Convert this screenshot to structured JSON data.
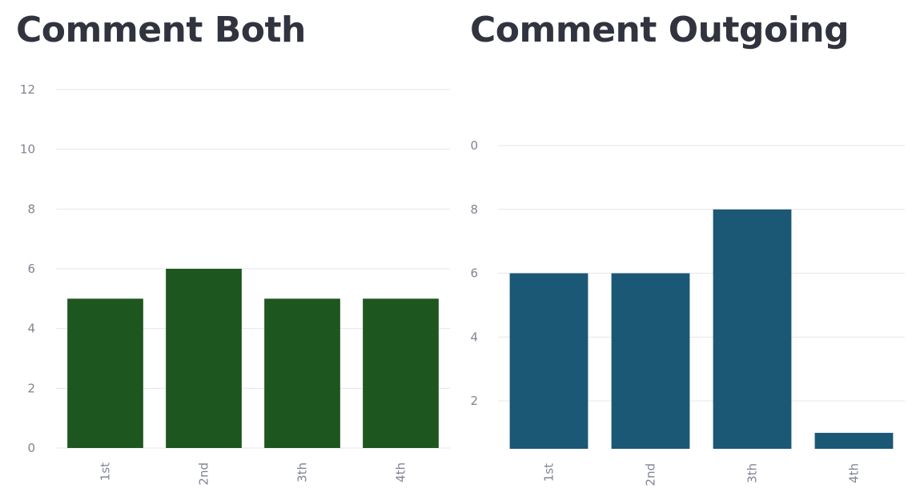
{
  "chart_data": [
    {
      "type": "bar",
      "title": "Comment Both",
      "categories": [
        "1st",
        "2nd",
        "3th",
        "4th"
      ],
      "values": [
        5,
        6,
        5,
        5
      ],
      "yticks": [
        "0",
        "2",
        "4",
        "6",
        "8",
        "10",
        "12"
      ],
      "ylim": [
        0,
        12
      ],
      "color": "#1d561f",
      "grid": true
    },
    {
      "type": "bar",
      "title": "Comment Outgoing",
      "categories": [
        "1st",
        "2nd",
        "3th",
        "4th"
      ],
      "values": [
        6,
        6,
        8,
        1
      ],
      "yticks": [
        "2",
        "4",
        "6",
        "8",
        "0"
      ],
      "ylim": [
        0.5,
        10
      ],
      "color": "#1a5876",
      "grid": true
    }
  ]
}
